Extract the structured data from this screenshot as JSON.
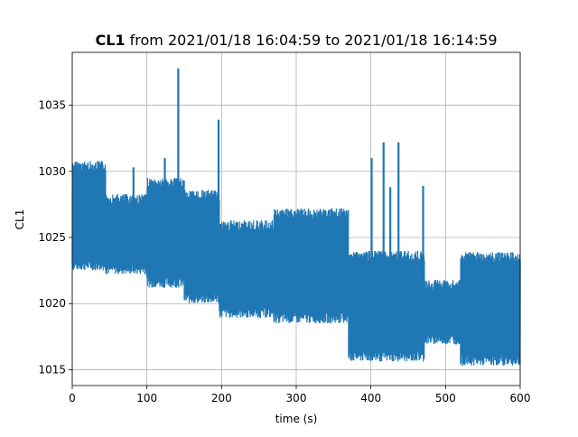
{
  "chart_data": {
    "type": "line",
    "title": {
      "bold": "CL1",
      "rest": " from 2021/01/18 16:04:59 to 2021/01/18 16:14:59"
    },
    "xlabel": "time (s)",
    "ylabel": "CL1",
    "xlim": [
      0,
      600
    ],
    "ylim": [
      1013.8,
      1039
    ],
    "xticks": [
      0,
      100,
      200,
      300,
      400,
      500,
      600
    ],
    "yticks": [
      1015,
      1020,
      1025,
      1030,
      1035
    ],
    "grid": true,
    "series": [
      {
        "color": "#1f77b4",
        "segments": [
          {
            "x": [
              0,
              45
            ],
            "y_low": 22.5,
            "y_high": 30.8
          },
          {
            "x": [
              45,
              100
            ],
            "y_low": 22.2,
            "y_high": 28.3
          },
          {
            "x": [
              100,
              150
            ],
            "y_low": 21.2,
            "y_high": 29.5
          },
          {
            "x": [
              150,
              197
            ],
            "y_low": 20.0,
            "y_high": 28.6
          },
          {
            "x": [
              197,
              270
            ],
            "y_low": 18.9,
            "y_high": 26.3
          },
          {
            "x": [
              270,
              370
            ],
            "y_low": 18.5,
            "y_high": 27.2
          },
          {
            "x": [
              370,
              472
            ],
            "y_low": 15.6,
            "y_high": 24.0
          },
          {
            "x": [
              472,
              520
            ],
            "y_low": 16.9,
            "y_high": 21.8
          },
          {
            "x": [
              520,
              600
            ],
            "y_low": 15.3,
            "y_high": 23.9
          }
        ],
        "spikes": [
          {
            "x": 82,
            "y": 30.3
          },
          {
            "x": 124,
            "y": 31.0
          },
          {
            "x": 142,
            "y": 37.8
          },
          {
            "x": 196,
            "y": 33.9
          },
          {
            "x": 401,
            "y": 31.0
          },
          {
            "x": 417,
            "y": 32.2
          },
          {
            "x": 426,
            "y": 28.8
          },
          {
            "x": 437,
            "y": 32.2
          },
          {
            "x": 470,
            "y": 28.9
          }
        ],
        "y_offset": 1000
      }
    ]
  }
}
